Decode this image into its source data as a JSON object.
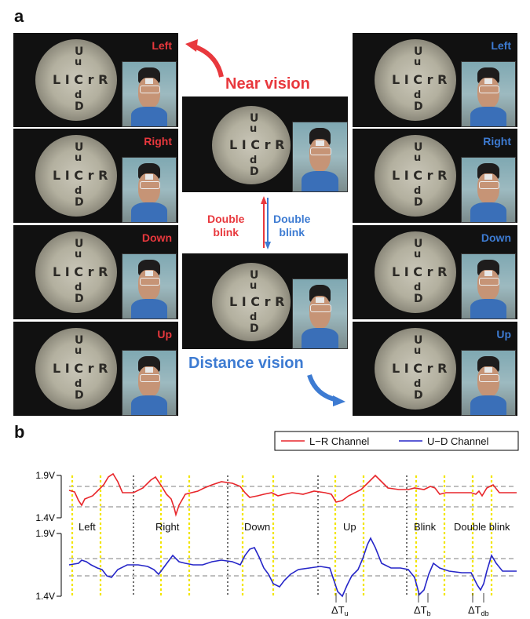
{
  "panel_a_label": "a",
  "panel_b_label": "b",
  "near_vision_label": "Near vision",
  "distance_vision_label": "Distance vision",
  "double_blink_red": "Double\nblink",
  "double_blink_blue": "Double\nblink",
  "left_panels": [
    {
      "direction": "Left",
      "letters": "LICrR"
    },
    {
      "direction": "Right",
      "letters": "LICrR"
    },
    {
      "direction": "Down",
      "letters": "LICrR"
    },
    {
      "direction": "Up",
      "letters": "LICrR"
    }
  ],
  "right_panels": [
    {
      "direction": "Left",
      "letters": "LICrR"
    },
    {
      "direction": "Right",
      "letters": "LICrR"
    },
    {
      "direction": "Down",
      "letters": "LICrR"
    },
    {
      "direction": "Up",
      "letters": "LICrR"
    }
  ],
  "colors": {
    "near": "#e8383d",
    "distance": "#3d7bd2",
    "lr_channel": "#e8262b",
    "ud_channel": "#2626c8"
  },
  "legend": {
    "lr": "L−R Channel",
    "ud": "U−D Channel"
  },
  "chart_data": {
    "type": "line",
    "series": [
      {
        "name": "L−R Channel",
        "ylim": [
          "1.4V",
          "1.9V"
        ]
      },
      {
        "name": "U−D Channel",
        "ylim": [
          "1.4V",
          "1.9V"
        ]
      }
    ],
    "ytick_labels_top": [
      "1.9V",
      "1.4V"
    ],
    "ytick_labels_bottom": [
      "1.9V",
      "1.4V"
    ],
    "segments": [
      "Left",
      "Right",
      "Down",
      "Up",
      "Blink",
      "Double blink"
    ],
    "annotations": [
      "ΔT",
      "ΔT",
      "ΔT"
    ],
    "annotation_subscripts": [
      "u",
      "b",
      "db"
    ]
  }
}
